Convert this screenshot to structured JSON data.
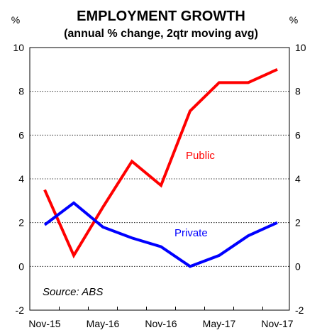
{
  "chart_data": {
    "type": "line",
    "title": "EMPLOYMENT GROWTH",
    "subtitle": "(annual % change, 2qtr moving avg)",
    "y_unit_left": "%",
    "y_unit_right": "%",
    "ylim": [
      -2,
      10
    ],
    "y_ticks": [
      -2,
      0,
      2,
      4,
      6,
      8,
      10
    ],
    "y_tick_labels": [
      "-2",
      "0",
      "2",
      "4",
      "6",
      "8",
      "10"
    ],
    "x": [
      "Nov-15",
      "Feb-16",
      "May-16",
      "Aug-16",
      "Nov-16",
      "Feb-17",
      "May-17",
      "Aug-17",
      "Nov-17"
    ],
    "x_tick_labels": [
      "Nov-15",
      "May-16",
      "Nov-16",
      "May-17",
      "Nov-17"
    ],
    "grid": true,
    "series": [
      {
        "name": "Public",
        "color": "#ff0000",
        "values": [
          3.5,
          0.5,
          2.7,
          4.8,
          3.7,
          7.1,
          8.4,
          8.4,
          9.0
        ]
      },
      {
        "name": "Private",
        "color": "#0000ff",
        "values": [
          1.9,
          2.9,
          1.8,
          1.3,
          0.9,
          0.0,
          0.5,
          1.4,
          2.0
        ]
      }
    ],
    "annotations": [
      {
        "text": "Source: ABS"
      }
    ]
  }
}
